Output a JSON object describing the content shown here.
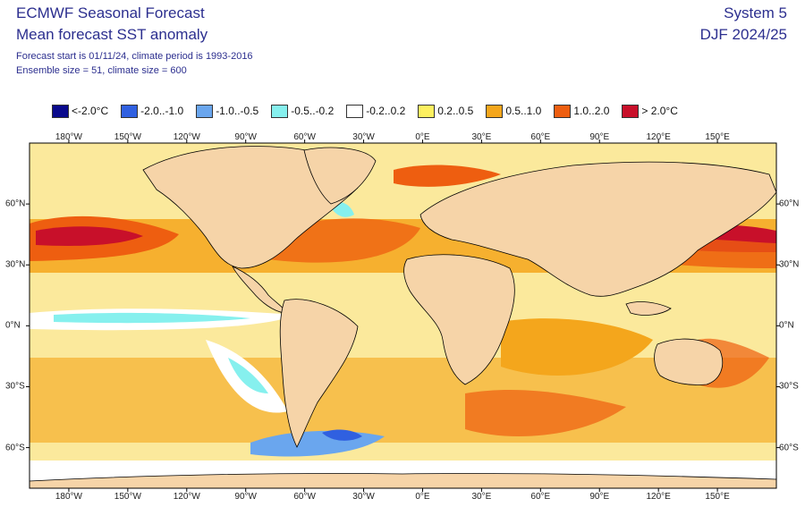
{
  "header": {
    "title_line1": "ECMWF Seasonal Forecast",
    "title_line2": "Mean forecast SST anomaly",
    "info_line1": "Forecast start is 01/11/24, climate period is 1993-2016",
    "info_line2": "Ensemble size = 51, climate size = 600",
    "system": "System 5",
    "period": "DJF 2024/25"
  },
  "legend": [
    {
      "label": "<-2.0°C",
      "color": "#0a0a8c"
    },
    {
      "label": "-2.0..-1.0",
      "color": "#3060e0"
    },
    {
      "label": "-1.0..-0.5",
      "color": "#6aa6ee"
    },
    {
      "label": "-0.5..-0.2",
      "color": "#86f0ee"
    },
    {
      "label": "-0.2..0.2",
      "color": "#ffffff"
    },
    {
      "label": "0.2..0.5",
      "color": "#fdf060"
    },
    {
      "label": "0.5..1.0",
      "color": "#f4a61c"
    },
    {
      "label": "1.0..2.0",
      "color": "#ee5e10"
    },
    {
      "label": "> 2.0°C",
      "color": "#c8102a"
    }
  ],
  "axes": {
    "lon_labels": [
      {
        "lon": -180,
        "label": "180°W"
      },
      {
        "lon": -150,
        "label": "150°W"
      },
      {
        "lon": -120,
        "label": "120°W"
      },
      {
        "lon": -90,
        "label": "90°W"
      },
      {
        "lon": -60,
        "label": "60°W"
      },
      {
        "lon": -30,
        "label": "30°W"
      },
      {
        "lon": 0,
        "label": "0°E"
      },
      {
        "lon": 30,
        "label": "30°E"
      },
      {
        "lon": 60,
        "label": "60°E"
      },
      {
        "lon": 90,
        "label": "90°E"
      },
      {
        "lon": 120,
        "label": "120°E"
      },
      {
        "lon": 150,
        "label": "150°E"
      }
    ],
    "lat_labels": [
      {
        "lat": 60,
        "label": "60°N"
      },
      {
        "lat": 30,
        "label": "30°N"
      },
      {
        "lat": 0,
        "label": "0°N"
      },
      {
        "lat": -30,
        "label": "30°S"
      },
      {
        "lat": -60,
        "label": "60°S"
      }
    ],
    "lon_range": [
      -200,
      180
    ],
    "lat_range": [
      -80,
      90
    ]
  },
  "colors": {
    "land": "#f6d4a8",
    "coast": "#000000"
  }
}
